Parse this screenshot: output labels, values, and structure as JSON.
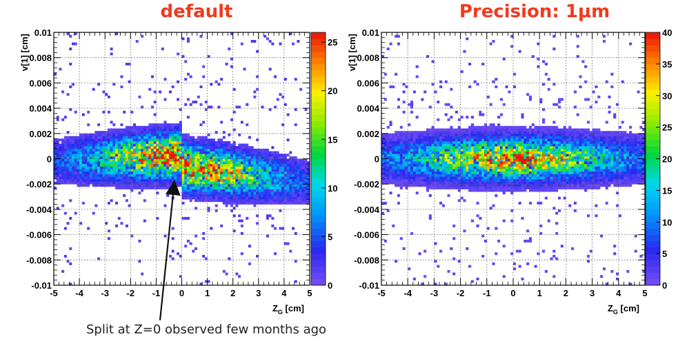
{
  "annotation": {
    "text": "Split at Z=0 observed few months ago"
  },
  "chart_data": [
    {
      "type": "heatmap",
      "title": "default",
      "xlabel": "Z_G [cm]",
      "xlabel_main": "Z",
      "xlabel_sub": "G",
      "xlabel_unit": " [cm]",
      "ylabel": "v[1] [cm]",
      "xlim": [
        -5,
        5
      ],
      "ylim": [
        -0.01,
        0.01
      ],
      "x_ticks": [
        "-5",
        "-4",
        "-3",
        "-2",
        "-1",
        "0",
        "1",
        "2",
        "3",
        "4",
        "5"
      ],
      "y_ticks": [
        "-0.01",
        "-0.008",
        "-0.006",
        "-0.004",
        "-0.002",
        "0",
        "0.002",
        "0.004",
        "0.006",
        "0.008",
        "0.01"
      ],
      "colorbar_range": [
        0,
        26
      ],
      "colorbar_ticks": [
        "0",
        "5",
        "10",
        "15",
        "20",
        "25"
      ],
      "distribution": "dense band near v=0, split at Z=0 with the band at Z>0 shifted slightly negative; maximum about 25",
      "grid": true
    },
    {
      "type": "heatmap",
      "title": "Precision: 1μm",
      "xlabel": "Z_G [cm]",
      "xlabel_main": "Z",
      "xlabel_sub": "G",
      "xlabel_unit": " [cm]",
      "ylabel": "v[1] [cm]",
      "xlim": [
        -5,
        5
      ],
      "ylim": [
        -0.01,
        0.01
      ],
      "x_ticks": [
        "-5",
        "-4",
        "-3",
        "-2",
        "-1",
        "0",
        "1",
        "2",
        "3",
        "4",
        "5"
      ],
      "y_ticks": [
        "-0.01",
        "-0.008",
        "-0.006",
        "-0.004",
        "-0.002",
        "0",
        "0.002",
        "0.004",
        "0.006",
        "0.008",
        "0.01"
      ],
      "colorbar_range": [
        0,
        40
      ],
      "colorbar_ticks": [
        "0",
        "5",
        "10",
        "15",
        "20",
        "25",
        "30",
        "35",
        "40"
      ],
      "distribution": "dense band centered on v=0, continuous across Z=0; maximum about 40",
      "grid": true
    }
  ]
}
